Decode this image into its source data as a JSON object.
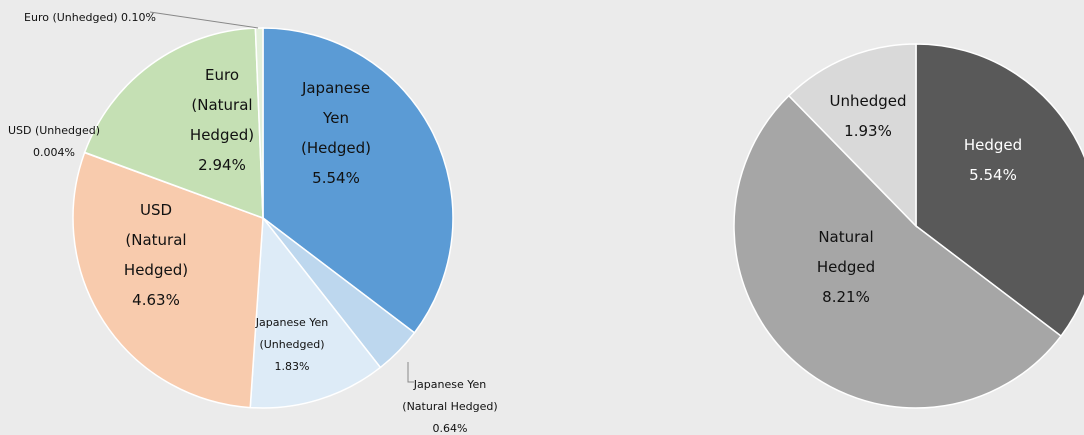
{
  "chart_data": [
    {
      "type": "pie",
      "categories": [
        "Japanese Yen (Hedged)",
        "Japanese Yen (Natural Hedged)",
        "Japanese Yen (Unhedged)",
        "USD (Natural Hedged)",
        "USD (Unhedged)",
        "Euro (Natural Hedged)",
        "Euro (Unhedged)"
      ],
      "values": [
        5.54,
        0.64,
        1.83,
        4.63,
        0.004,
        2.94,
        0.1
      ],
      "value_labels": [
        "5.54%",
        "0.64%",
        "1.83%",
        "4.63%",
        "0.004%",
        "2.94%",
        "0.10%"
      ],
      "colors": [
        "#5b9bd5",
        "#bdd7ee",
        "#ddebf7",
        "#f8cbad",
        "#f4b183",
        "#c5e0b4",
        "#e2efda"
      ]
    },
    {
      "type": "pie",
      "categories": [
        "Hedged",
        "Natural Hedged",
        "Unhedged"
      ],
      "values": [
        5.54,
        8.21,
        1.93
      ],
      "value_labels": [
        "5.54%",
        "8.21%",
        "1.93%"
      ],
      "colors": [
        "#595959",
        "#a6a6a6",
        "#d9d9d9"
      ]
    }
  ]
}
